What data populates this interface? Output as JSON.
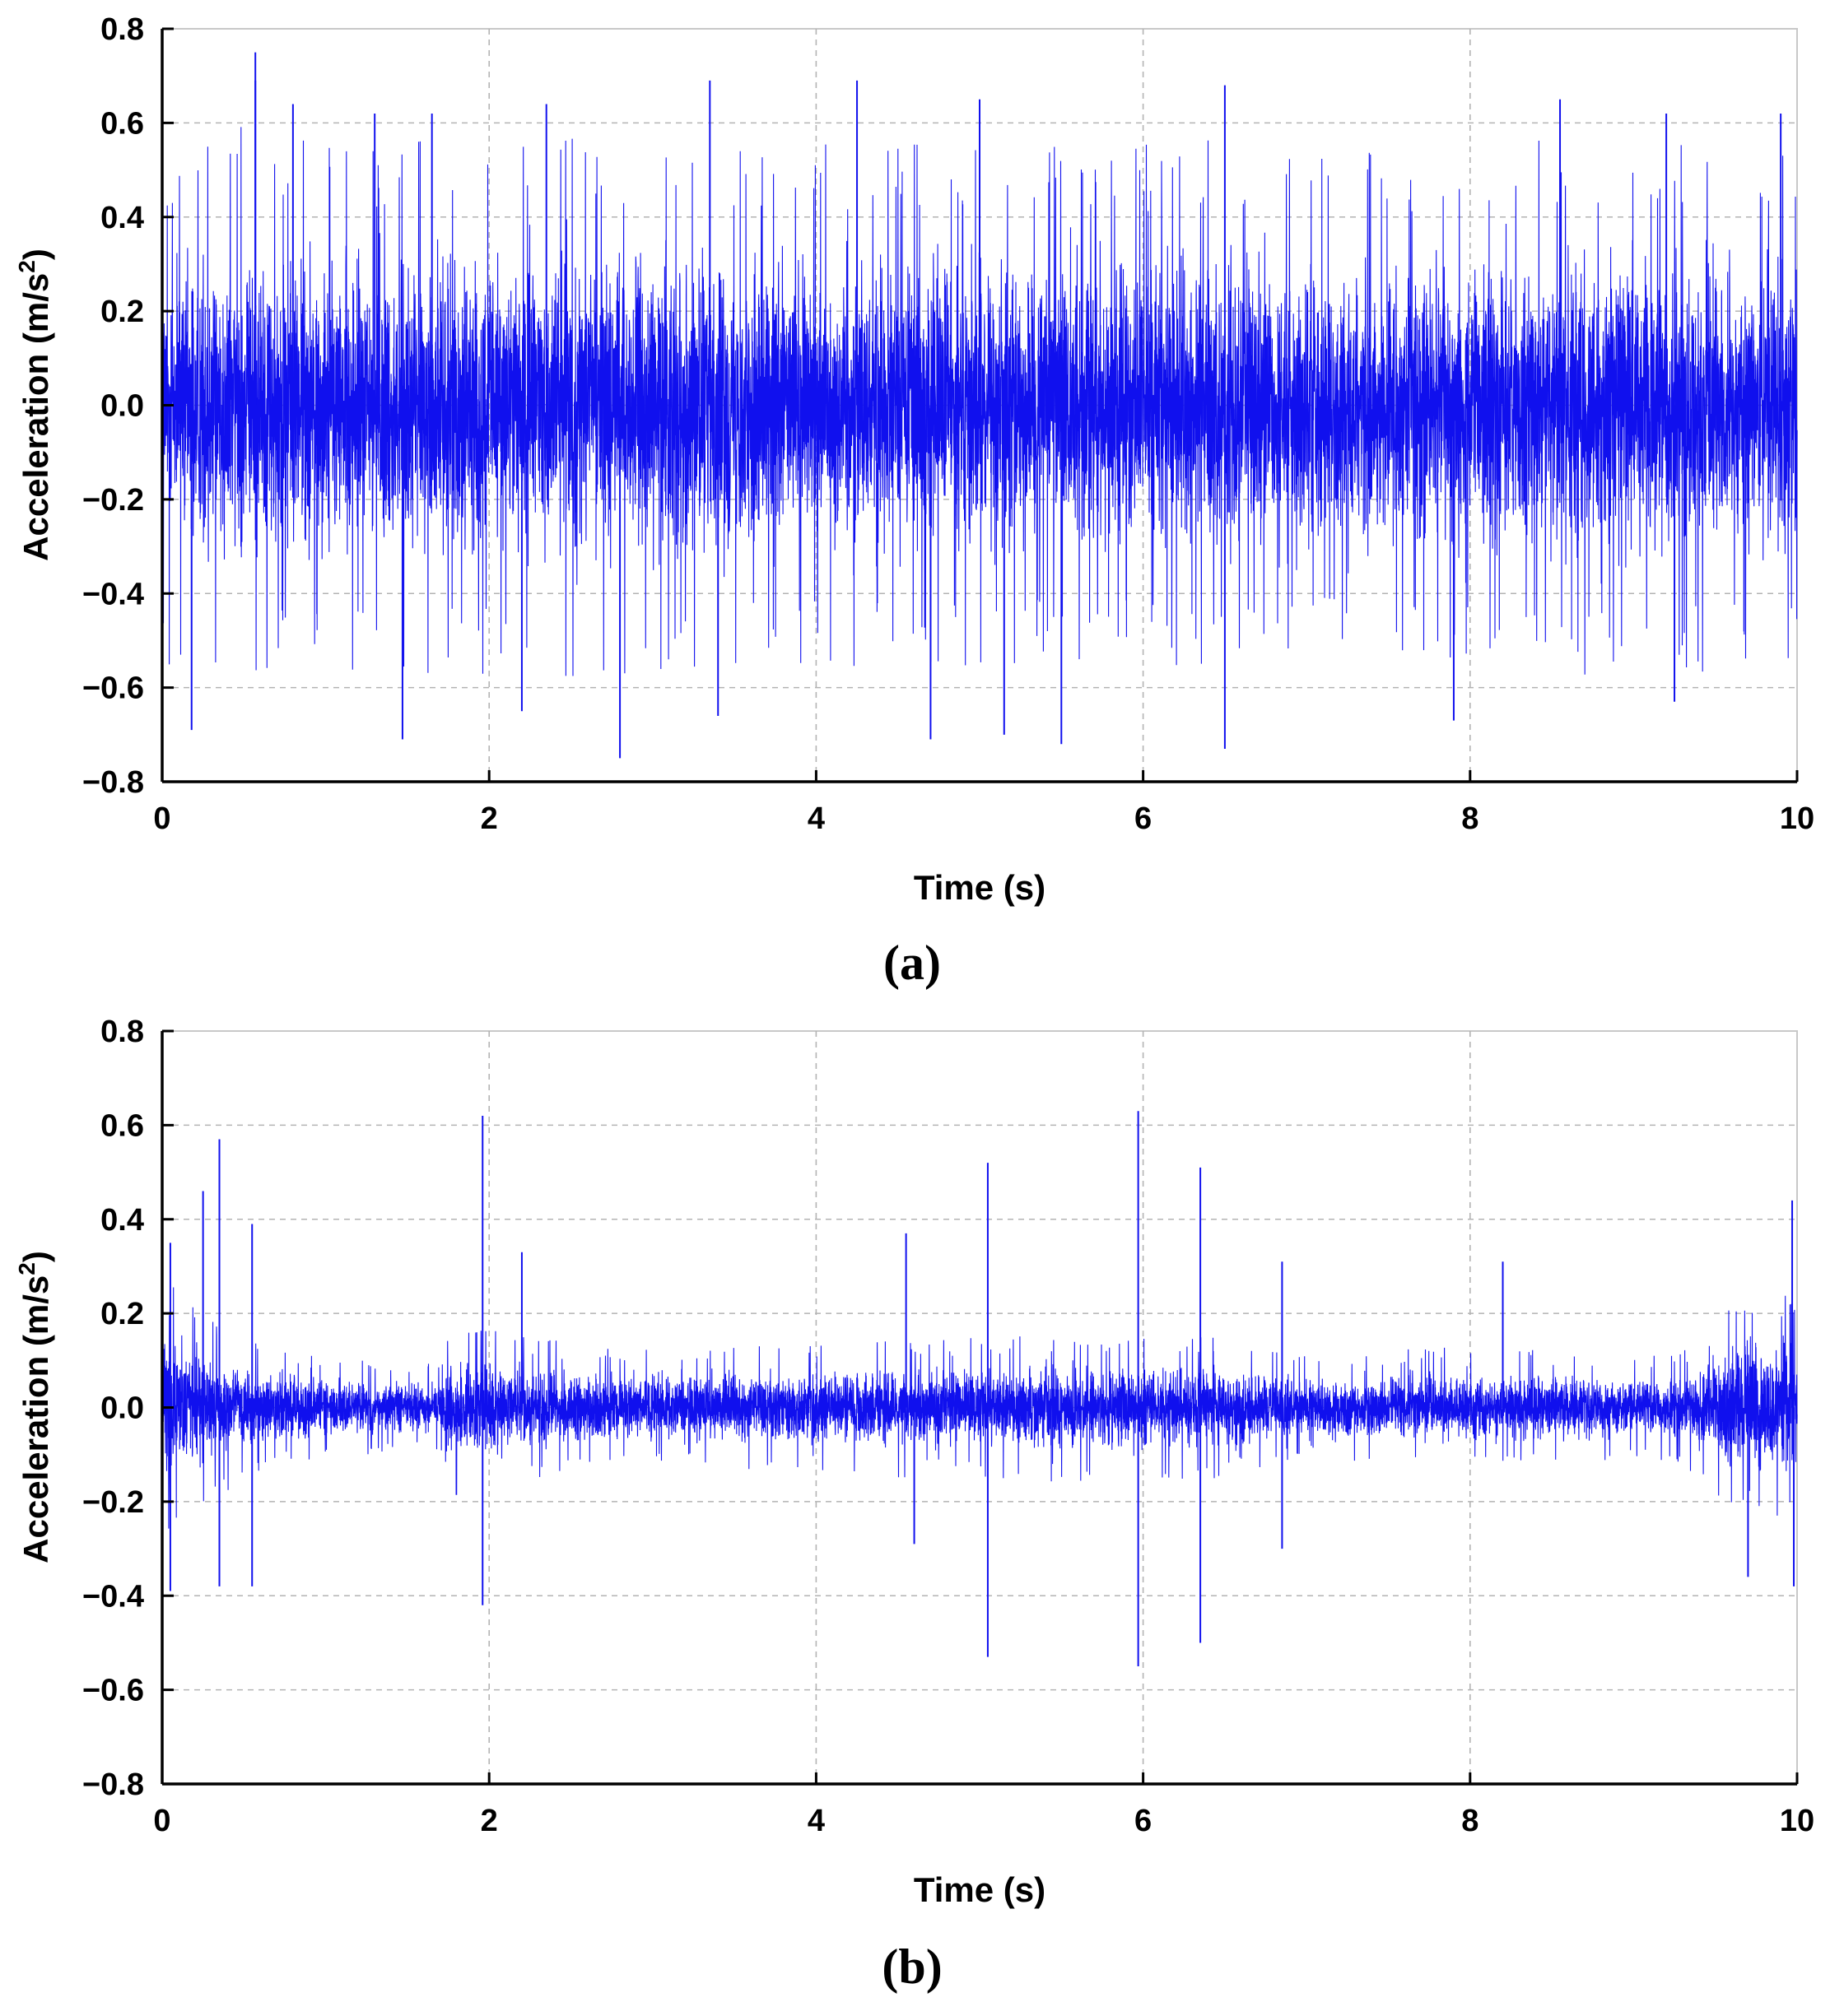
{
  "style": {
    "signal_color": "#1010ee",
    "axis_color": "#000000",
    "grid_color": "#b3b3b3"
  },
  "chart_data": [
    {
      "type": "line",
      "panel_label": "a",
      "xlabel": "Time (s)",
      "ylabel": "Acceleration (m/s²)",
      "ylabel_main": "Acceleration (m/s",
      "ylabel_sup": "2",
      "ylabel_close": ")",
      "xlim": [
        0,
        10
      ],
      "ylim": [
        -0.8,
        0.8
      ],
      "x_ticks": [
        "0",
        "2",
        "4",
        "6",
        "8",
        "10"
      ],
      "y_ticks": [
        "0.8",
        "0.6",
        "0.4",
        "0.2",
        "0.0",
        "−0.2",
        "−0.4",
        "−0.6",
        "−0.8"
      ],
      "grid": "dashed",
      "series": [
        {
          "values_description": "dense broadband vibration signal",
          "envelope": {
            "t": [
              0,
              0.5,
              1,
              1.5,
              2,
              2.5,
              3,
              3.5,
              4,
              4.5,
              5,
              5.5,
              6,
              6.5,
              7,
              7.5,
              8,
              8.5,
              9,
              9.5,
              10
            ],
            "half_width": [
              0.42,
              0.44,
              0.42,
              0.42,
              0.43,
              0.43,
              0.42,
              0.42,
              0.41,
              0.42,
              0.42,
              0.41,
              0.41,
              0.42,
              0.4,
              0.4,
              0.42,
              0.43,
              0.42,
              0.42,
              0.42
            ]
          },
          "peaks": [
            [
              0.57,
              0.75
            ],
            [
              0.57,
              0.69
            ],
            [
              0.8,
              0.64
            ],
            [
              1.3,
              0.62
            ],
            [
              1.65,
              0.62
            ],
            [
              2.35,
              0.64
            ],
            [
              3.35,
              0.69
            ],
            [
              4.25,
              0.69
            ],
            [
              5.0,
              0.65
            ],
            [
              6.5,
              0.68
            ],
            [
              8.55,
              0.65
            ],
            [
              9.2,
              0.62
            ],
            [
              9.9,
              0.62
            ],
            [
              0.18,
              -0.69
            ],
            [
              1.47,
              -0.71
            ],
            [
              2.8,
              -0.75
            ],
            [
              4.7,
              -0.71
            ],
            [
              5.15,
              -0.7
            ],
            [
              5.5,
              -0.72
            ],
            [
              6.5,
              -0.73
            ],
            [
              7.9,
              -0.67
            ],
            [
              9.25,
              -0.63
            ],
            [
              3.4,
              -0.66
            ],
            [
              2.2,
              -0.65
            ]
          ]
        }
      ]
    },
    {
      "type": "line",
      "panel_label": "b",
      "xlabel": "Time (s)",
      "ylabel": "Acceleration (m/s²)",
      "ylabel_main": "Acceleration (m/s",
      "ylabel_sup": "2",
      "ylabel_close": ")",
      "xlim": [
        0,
        10
      ],
      "ylim": [
        -0.8,
        0.8
      ],
      "x_ticks": [
        "0",
        "2",
        "4",
        "6",
        "8",
        "10"
      ],
      "y_ticks": [
        "0.8",
        "0.6",
        "0.4",
        "0.2",
        "0.0",
        "−0.2",
        "−0.4",
        "−0.6",
        "−0.8"
      ],
      "grid": "dashed",
      "series": [
        {
          "values_description": "low-amplitude vibration signal with isolated spikes",
          "envelope": {
            "t": [
              0,
              0.3,
              0.6,
              1.0,
              1.5,
              1.72,
              1.75,
              2.0,
              2.5,
              3.0,
              3.5,
              4.0,
              4.5,
              5.0,
              5.5,
              6.0,
              6.5,
              7.0,
              7.5,
              8.0,
              8.5,
              9.0,
              9.3,
              9.6,
              10
            ],
            "half_width": [
              0.2,
              0.16,
              0.1,
              0.08,
              0.07,
              0.07,
              0.14,
              0.13,
              0.1,
              0.09,
              0.1,
              0.1,
              0.11,
              0.11,
              0.12,
              0.12,
              0.11,
              0.08,
              0.09,
              0.1,
              0.09,
              0.08,
              0.09,
              0.16,
              0.2
            ]
          },
          "peaks": [
            [
              0.35,
              0.57
            ],
            [
              0.25,
              0.46
            ],
            [
              0.55,
              0.39
            ],
            [
              1.96,
              0.62
            ],
            [
              5.05,
              0.52
            ],
            [
              5.97,
              0.63
            ],
            [
              6.35,
              0.51
            ],
            [
              4.55,
              0.37
            ],
            [
              6.85,
              0.31
            ],
            [
              8.2,
              0.31
            ],
            [
              9.97,
              0.44
            ],
            [
              0.05,
              0.35
            ],
            [
              2.2,
              0.33
            ],
            [
              0.05,
              -0.39
            ],
            [
              0.55,
              -0.38
            ],
            [
              1.96,
              -0.42
            ],
            [
              5.05,
              -0.53
            ],
            [
              5.97,
              -0.55
            ],
            [
              6.35,
              -0.5
            ],
            [
              9.7,
              -0.36
            ],
            [
              9.98,
              -0.38
            ],
            [
              0.35,
              -0.38
            ],
            [
              6.85,
              -0.3
            ],
            [
              4.6,
              -0.29
            ]
          ]
        }
      ]
    }
  ]
}
